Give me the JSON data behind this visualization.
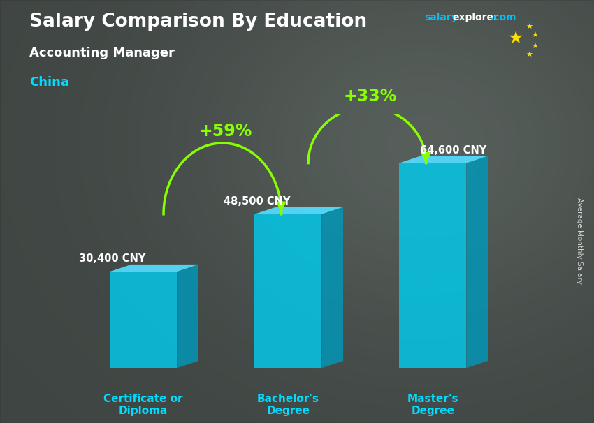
{
  "title": "Salary Comparison By Education",
  "subtitle": "Accounting Manager",
  "country": "China",
  "categories": [
    "Certificate or\nDiploma",
    "Bachelor's\nDegree",
    "Master's\nDegree"
  ],
  "values": [
    30400,
    48500,
    64600
  ],
  "value_labels": [
    "30,400 CNY",
    "48,500 CNY",
    "64,600 CNY"
  ],
  "pct_labels": [
    "+59%",
    "+33%"
  ],
  "bar_color_face": "#00CCEE",
  "bar_color_side": "#0099BB",
  "bar_color_top": "#55DDFF",
  "bg_color": "#555555",
  "title_color": "#FFFFFF",
  "subtitle_color": "#FFFFFF",
  "country_color": "#00DDFF",
  "value_label_color": "#FFFFFF",
  "pct_color": "#88FF00",
  "arrow_color": "#88FF00",
  "ylabel": "Average Monthly Salary",
  "bar_width": 0.13,
  "ylim": [
    0,
    80000
  ],
  "x_positions": [
    0.22,
    0.5,
    0.78
  ],
  "bar_alpha": 0.82
}
